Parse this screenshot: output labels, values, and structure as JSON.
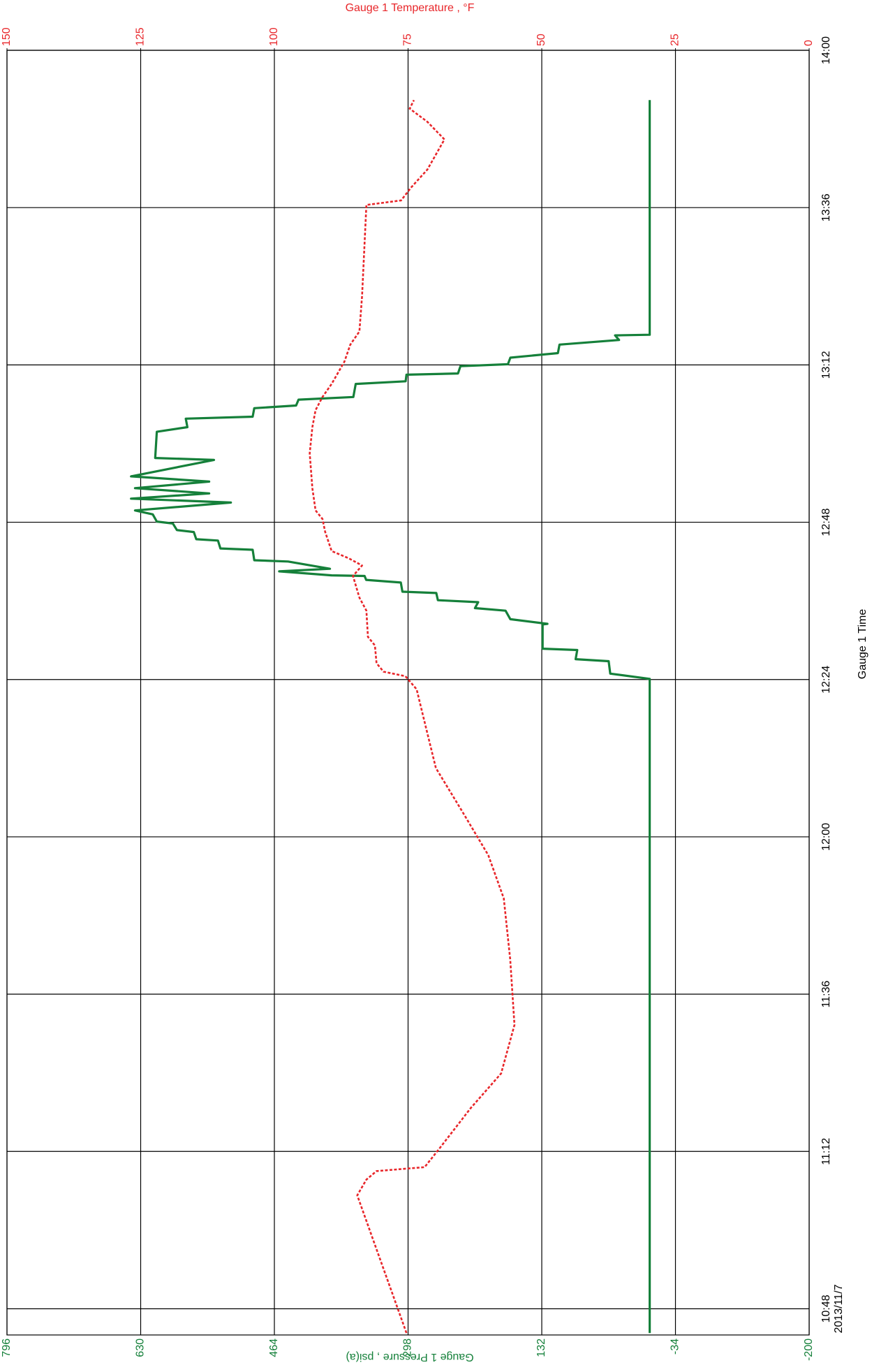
{
  "chart_data": {
    "type": "line",
    "x_label": "Gauge 1 Time",
    "date": "2013/11/7",
    "y_label": "Gauge 1 Pressure , psi(a)",
    "y2_label": "Gauge 1 Temperature , °F",
    "xlim": [
      644,
      840
    ],
    "xticks": [
      {
        "value": 648,
        "label": "10:48"
      },
      {
        "value": 672,
        "label": "11:12"
      },
      {
        "value": 696,
        "label": "11:36"
      },
      {
        "value": 720,
        "label": "12:00"
      },
      {
        "value": 744,
        "label": "12:24"
      },
      {
        "value": 768,
        "label": "12:48"
      },
      {
        "value": 792,
        "label": "13:12"
      },
      {
        "value": 816,
        "label": "13:36"
      },
      {
        "value": 840,
        "label": "14:00"
      }
    ],
    "ylim": [
      -200,
      796
    ],
    "yticks": [
      -200,
      -34,
      132,
      298,
      464,
      630,
      796
    ],
    "y2lim": [
      0,
      150
    ],
    "y2ticks": [
      0,
      25,
      50,
      75,
      100,
      125,
      150
    ],
    "grid": true,
    "series": [
      {
        "color": "#15803a",
        "dashed": false,
        "x": [
          644.3,
          744.1,
          744.9,
          746.8,
          747.1,
          748.5,
          748.7,
          752.4,
          752.5,
          753.2,
          754.5,
          754.9,
          755.8,
          756.1,
          757.2,
          757.4,
          758.8,
          759.2,
          759.8,
          759.9,
          760.5,
          760.9,
          762.0,
          762.2,
          763.8,
          764.0,
          765.2,
          765.4,
          766.5,
          766.8,
          767.8,
          768.1,
          769.2,
          769.8,
          771.0,
          771.6,
          772.4,
          773.2,
          774.2,
          775.0,
          777.5,
          777.8,
          781.8,
          782.5,
          783.8,
          784.1,
          785.4,
          785.8,
          786.7,
          787.1,
          789.1,
          789.5,
          790.5,
          790.7,
          791.8,
          792.1,
          793.1,
          793.8,
          795.1,
          795.8,
          796.5,
          796.6,
          832.4
        ],
        "values": [
          -2,
          -2,
          47,
          49,
          90,
          88,
          131,
          131,
          125,
          171,
          177,
          215,
          211,
          261,
          263,
          305,
          307,
          350,
          352,
          393,
          458,
          395,
          447,
          489,
          491,
          531,
          534,
          561,
          564,
          585,
          590,
          610,
          615,
          637,
          518,
          642,
          545,
          637,
          545,
          642,
          539,
          612,
          610,
          572,
          574,
          491,
          489,
          437,
          434,
          366,
          363,
          301,
          300,
          236,
          233,
          174,
          171,
          112,
          110,
          36,
          41,
          -2,
          -2
        ]
      },
      {
        "color": "#e8262a",
        "dashed": true,
        "axis": "y2",
        "x": [
          644.3,
          665.3,
          667.7,
          669.0,
          669.6,
          672.6,
          678.6,
          683.9,
          691.3,
          701.3,
          710.6,
          717.2,
          723.9,
          730.5,
          738.5,
          742.5,
          744.5,
          745.2,
          746.5,
          749.2,
          750.5,
          754.5,
          756.5,
          759.8,
          761.4,
          762.5,
          763.6,
          766.5,
          768.5,
          769.8,
          773.2,
          778.5,
          782.5,
          785.1,
          787.1,
          789.1,
          792.5,
          795.1,
          797.1,
          802.5,
          816.4,
          817.1,
          819.1,
          821.8,
          826.4,
          829.1,
          831.1,
          832.4
        ],
        "values": [
          75.3,
          84.5,
          82.8,
          80.9,
          71.9,
          69.0,
          63.3,
          57.6,
          55.1,
          55.9,
          57.1,
          60.0,
          64.9,
          69.8,
          72.2,
          73.4,
          75.5,
          79.6,
          80.9,
          81.2,
          82.5,
          82.8,
          84.1,
          85.3,
          83.6,
          86.1,
          89.3,
          90.5,
          91.0,
          92.3,
          92.9,
          93.4,
          92.9,
          92.3,
          91.0,
          89.3,
          86.9,
          85.8,
          84.1,
          83.6,
          82.8,
          76.3,
          74.4,
          71.4,
          68.2,
          71.4,
          74.7,
          73.9
        ]
      }
    ]
  }
}
